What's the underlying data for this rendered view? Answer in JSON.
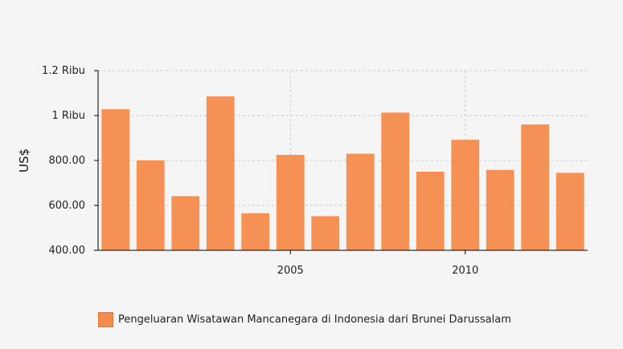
{
  "chart_data": {
    "type": "bar",
    "title": "",
    "xlabel": "",
    "ylabel": "US$",
    "ylim": [
      400,
      1200
    ],
    "yticks": [
      {
        "value": 400,
        "label": "400.00"
      },
      {
        "value": 600,
        "label": "600.00"
      },
      {
        "value": 800,
        "label": "800.00"
      },
      {
        "value": 1000,
        "label": "1 Ribu"
      },
      {
        "value": 1200,
        "label": "1.2 Ribu"
      }
    ],
    "xticks": [
      {
        "value": 2005,
        "label": "2005"
      },
      {
        "value": 2010,
        "label": "2010"
      }
    ],
    "x": [
      2000,
      2001,
      2002,
      2003,
      2004,
      2005,
      2006,
      2007,
      2008,
      2009,
      2010,
      2011,
      2012,
      2013
    ],
    "series": [
      {
        "name": "Pengeluaran Wisatawan Mancanegara di Indonesia dari Brunei Darussalam",
        "color": "#f58b4c",
        "values": [
          1028,
          800,
          641,
          1085,
          565,
          825,
          552,
          830,
          1013,
          750,
          892,
          758,
          960,
          745
        ]
      }
    ],
    "grid": true,
    "legend_position": "bottom-left"
  }
}
